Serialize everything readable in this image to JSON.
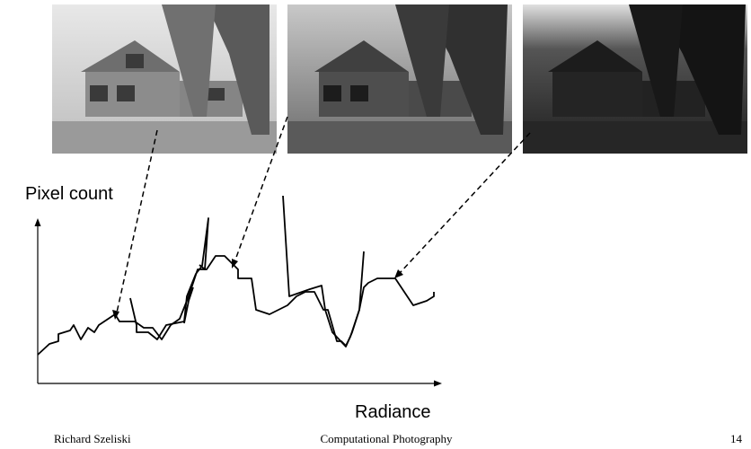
{
  "axes": {
    "y_label": "Pixel count",
    "x_label": "Radiance"
  },
  "footer": {
    "author": "Richard Szeliski",
    "course": "Computational Photography",
    "page": "14"
  }
}
